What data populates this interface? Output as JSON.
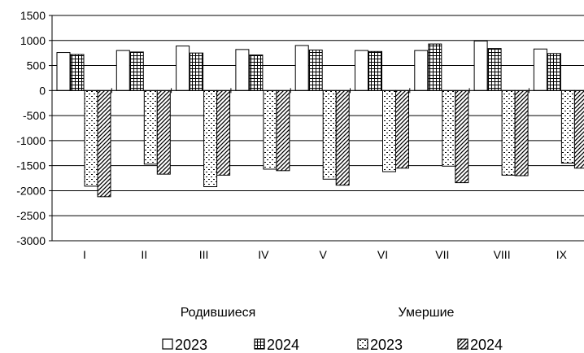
{
  "chart_data": {
    "type": "bar",
    "categories": [
      "I",
      "II",
      "III",
      "IV",
      "V",
      "VI",
      "VII",
      "VIII",
      "IX"
    ],
    "ylim": [
      -3000,
      1500
    ],
    "yticks": [
      1500,
      1000,
      500,
      0,
      -500,
      -1000,
      -1500,
      -2000,
      -2500,
      -3000
    ],
    "grid": true,
    "legend_position": "bottom",
    "group_labels": [
      "Родившиеся",
      "Умершие"
    ],
    "series": [
      {
        "name": "2023",
        "group": "Родившиеся",
        "pattern": "white",
        "values": [
          760,
          800,
          890,
          820,
          900,
          800,
          800,
          990,
          830
        ]
      },
      {
        "name": "2024",
        "group": "Родившиеся",
        "pattern": "grid",
        "values": [
          720,
          770,
          750,
          710,
          810,
          780,
          930,
          840,
          740
        ]
      },
      {
        "name": "2023",
        "group": "Умершие",
        "pattern": "dashes",
        "values": [
          -1910,
          -1470,
          -1920,
          -1570,
          -1770,
          -1620,
          -1510,
          -1690,
          -1450
        ]
      },
      {
        "name": "2024",
        "group": "Умершие",
        "pattern": "diagonal",
        "values": [
          -2120,
          -1670,
          -1690,
          -1600,
          -1890,
          -1550,
          -1840,
          -1700,
          -1550
        ]
      }
    ]
  }
}
